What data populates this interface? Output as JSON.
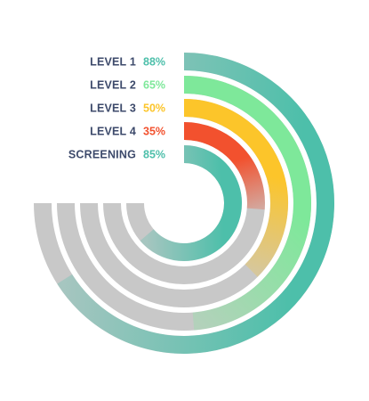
{
  "chart_data": {
    "type": "radial-bar",
    "title": "",
    "categories": [
      "LEVEL 1",
      "LEVEL 2",
      "LEVEL 3",
      "LEVEL 4",
      "SCREENING"
    ],
    "values": [
      88,
      65,
      50,
      35,
      85
    ],
    "value_labels": [
      "88%",
      "65%",
      "50%",
      "35%",
      "85%"
    ],
    "max": 100,
    "track_color": "#c8c8c8",
    "series_colors": [
      "#4dbfaa",
      "#7ee89a",
      "#fcc52a",
      "#f2512e",
      "#4dbfaa"
    ],
    "label_color": "#3d4a6b",
    "legend_placement": "left-of-rings"
  }
}
